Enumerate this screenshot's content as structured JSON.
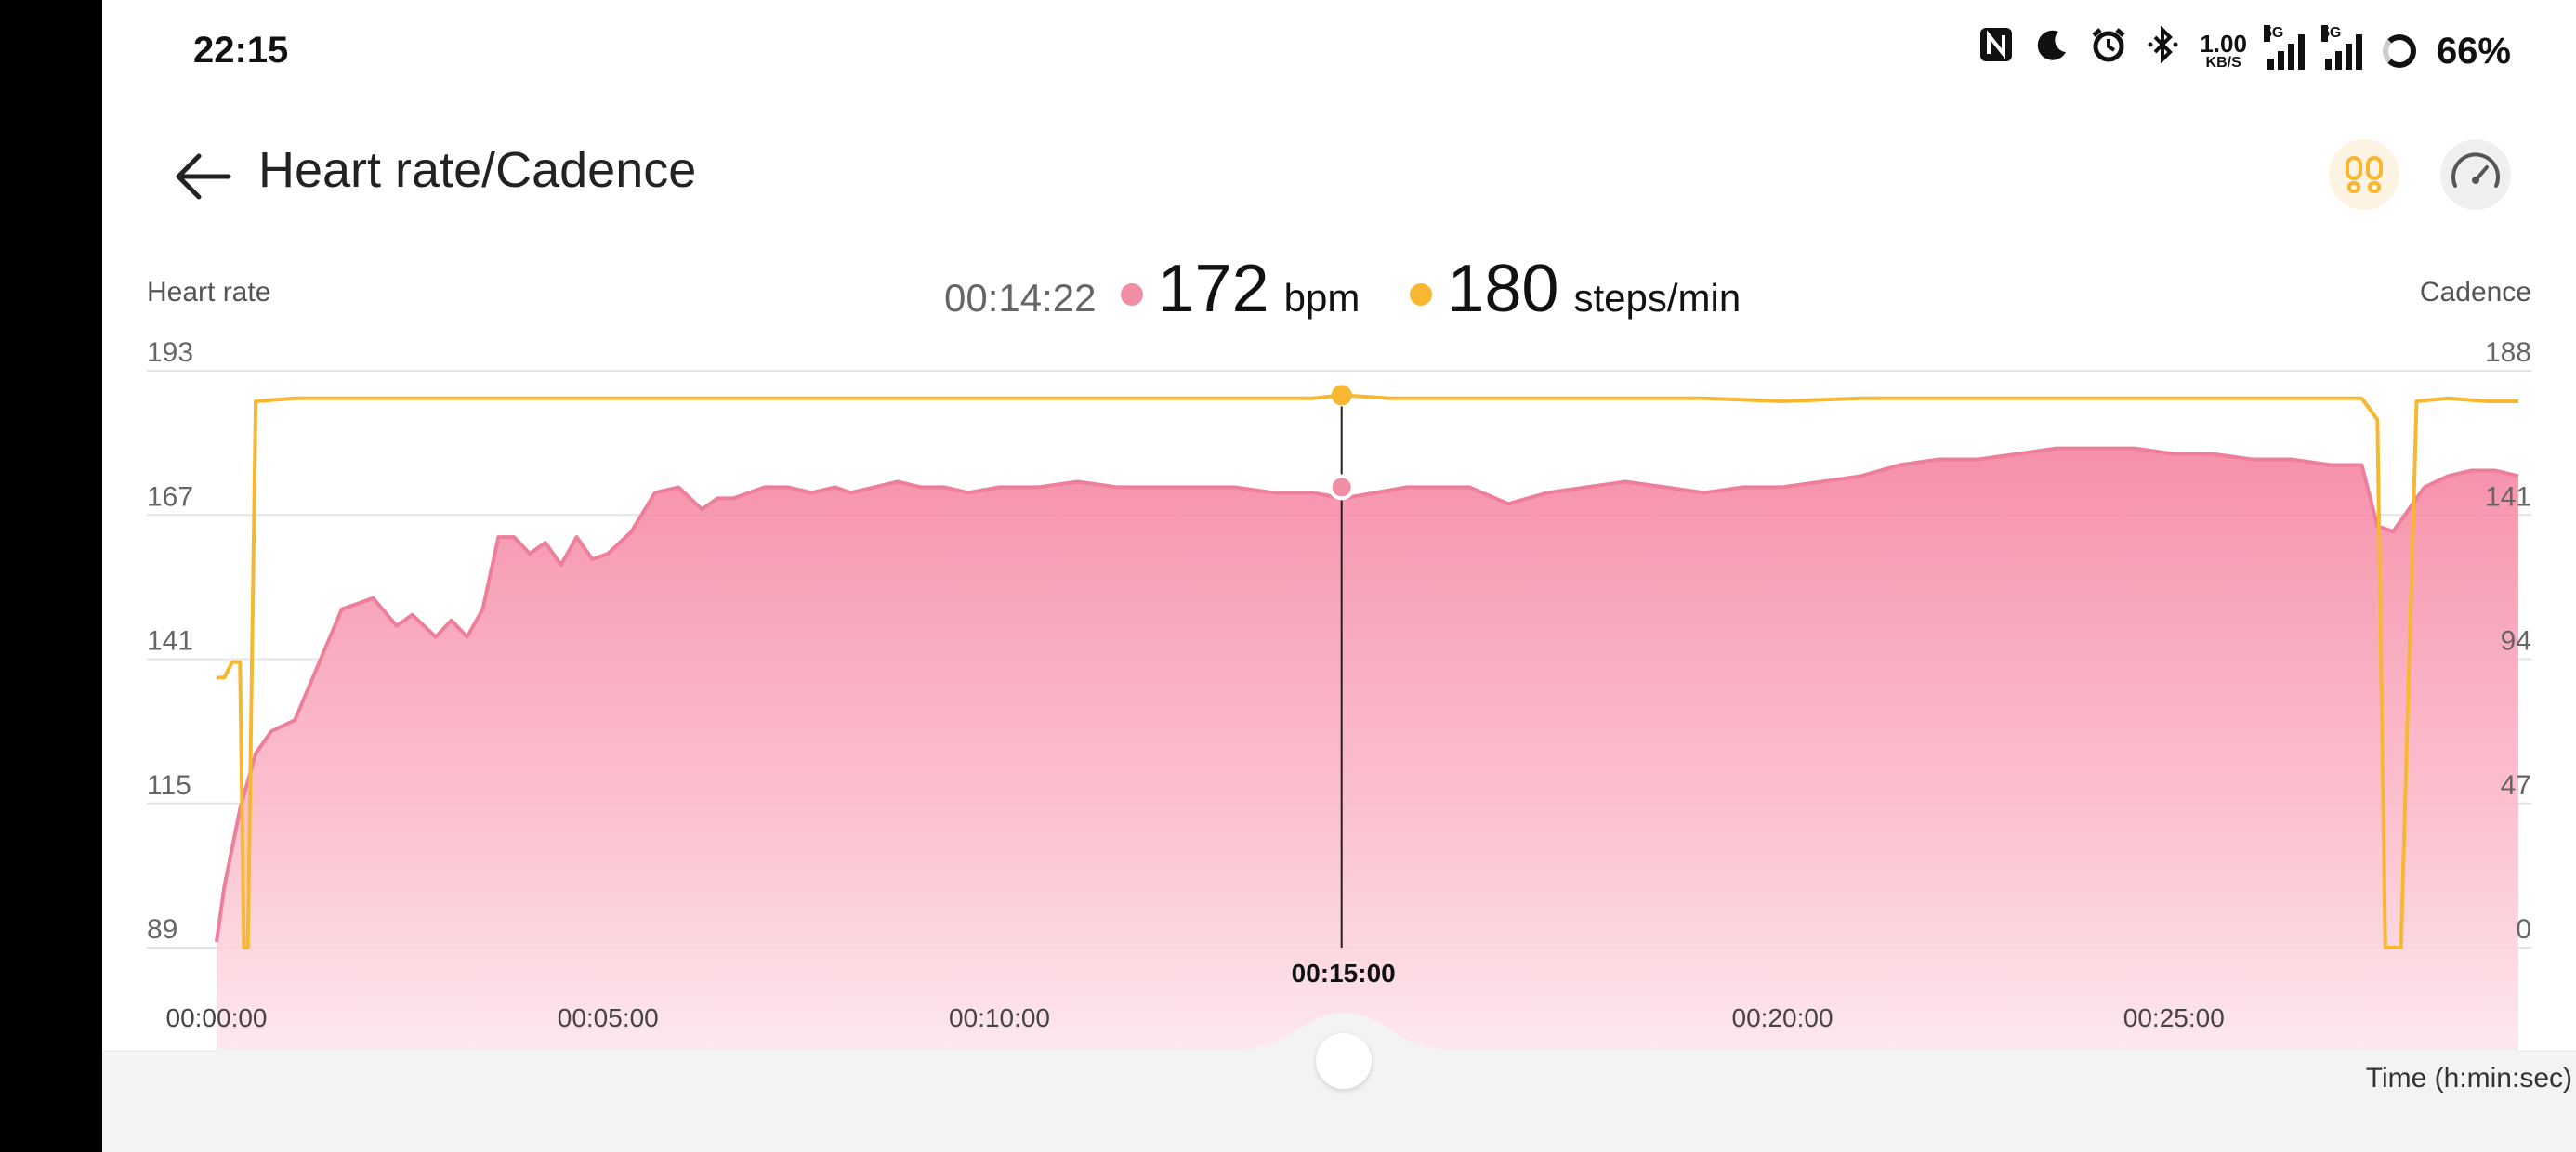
{
  "status_bar": {
    "time": "22:15",
    "icons": [
      "nfc-icon",
      "moon-icon",
      "alarm-icon",
      "bluetooth-icon"
    ],
    "net_speed_value": "1.00",
    "net_speed_unit": "KB/S",
    "signal_tag_1": "5G",
    "signal_tag_2": "5G",
    "battery": "66%"
  },
  "header": {
    "title": "Heart rate/Cadence",
    "back_icon": "arrow-left-icon",
    "right_icons": [
      "footsteps-icon",
      "speedometer-icon"
    ]
  },
  "readout": {
    "time": "00:14:22",
    "heart_rate_value": "172",
    "heart_rate_unit": "bpm",
    "cadence_value": "180",
    "cadence_unit": "steps/min"
  },
  "chart_data": {
    "type": "area",
    "left_axis_label": "Heart rate",
    "right_axis_label": "Cadence",
    "xlabel": "Time (h:min:sec)",
    "x_tick_labels": [
      "00:00:00",
      "00:05:00",
      "00:10:00",
      "00:15:00",
      "00:20:00",
      "00:25:00"
    ],
    "x_tick_minutes": [
      0,
      5,
      10,
      15,
      20,
      25
    ],
    "x_range_minutes": [
      0,
      29.4
    ],
    "left_ticks": [
      "193",
      "167",
      "141",
      "115",
      "89"
    ],
    "left_ylim": [
      89,
      193
    ],
    "right_ticks": [
      "188",
      "141",
      "94",
      "47",
      "0"
    ],
    "right_ylim": [
      0,
      188
    ],
    "grid": true,
    "selected_time_minutes": 14.37,
    "selected_time_label": "00:15:00",
    "series": [
      {
        "name": "Heart rate",
        "axis": "left",
        "color": "#f08ea6",
        "x": [
          0,
          0.1,
          0.3,
          0.5,
          0.7,
          1.0,
          1.3,
          1.6,
          2.0,
          2.3,
          2.5,
          2.8,
          3.0,
          3.2,
          3.4,
          3.6,
          3.8,
          4.0,
          4.2,
          4.4,
          4.6,
          4.8,
          5.0,
          5.3,
          5.6,
          5.9,
          6.2,
          6.4,
          6.6,
          6.8,
          7.0,
          7.3,
          7.6,
          7.9,
          8.1,
          8.4,
          8.7,
          9.0,
          9.3,
          9.6,
          10.0,
          10.5,
          11.0,
          11.5,
          12.0,
          12.5,
          13.0,
          13.5,
          14.0,
          14.4,
          14.8,
          15.2,
          15.6,
          16.0,
          16.5,
          17.0,
          17.5,
          18.0,
          18.5,
          19.0,
          19.5,
          20.0,
          20.5,
          21.0,
          21.5,
          22.0,
          22.5,
          23.0,
          23.5,
          24.0,
          24.5,
          25.0,
          25.5,
          26.0,
          26.5,
          27.0,
          27.4,
          27.6,
          27.8,
          28.0,
          28.2,
          28.5,
          28.8,
          29.1,
          29.4
        ],
        "values": [
          90,
          100,
          114,
          124,
          128,
          130,
          140,
          150,
          152,
          147,
          149,
          145,
          148,
          145,
          150,
          163,
          163,
          160,
          162,
          158,
          163,
          159,
          160,
          164,
          171,
          172,
          168,
          170,
          170,
          171,
          172,
          172,
          171,
          172,
          171,
          172,
          173,
          172,
          172,
          171,
          172,
          172,
          173,
          172,
          172,
          172,
          172,
          171,
          171,
          170,
          171,
          172,
          172,
          172,
          169,
          171,
          172,
          173,
          172,
          171,
          172,
          172,
          173,
          174,
          176,
          177,
          177,
          178,
          179,
          179,
          179,
          178,
          178,
          177,
          177,
          176,
          176,
          165,
          164,
          168,
          172,
          174,
          175,
          175,
          174
        ]
      },
      {
        "name": "Cadence",
        "axis": "right",
        "color": "#f7b731",
        "x": [
          0,
          0.1,
          0.2,
          0.3,
          0.35,
          0.4,
          0.5,
          1,
          2,
          3,
          4,
          5,
          6,
          7,
          8,
          9,
          10,
          11,
          12,
          13,
          14,
          14.37,
          15,
          16,
          17,
          18,
          19,
          20,
          21,
          22,
          23,
          24,
          25,
          26,
          27,
          27.4,
          27.6,
          27.7,
          27.8,
          27.9,
          28.1,
          28.5,
          29,
          29.4
        ],
        "values": [
          88,
          88,
          93,
          93,
          0,
          0,
          178,
          179,
          179,
          179,
          179,
          179,
          179,
          179,
          179,
          179,
          179,
          179,
          179,
          179,
          179,
          180,
          179,
          179,
          179,
          179,
          179,
          178,
          179,
          179,
          179,
          179,
          179,
          179,
          179,
          179,
          172,
          0,
          0,
          0,
          178,
          179,
          178,
          178
        ]
      }
    ]
  }
}
